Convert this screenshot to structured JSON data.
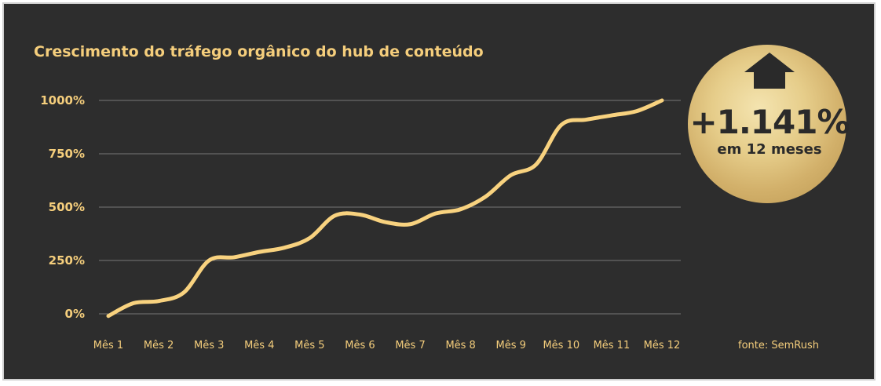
{
  "chart_data": {
    "type": "line",
    "title": "Crescimento do tráfego orgânico do hub de conteúdo",
    "categories": [
      "Mês 1",
      "Mês 2",
      "Mês 3",
      "Mês 4",
      "Mês 5",
      "Mês 6",
      "Mês 7",
      "Mês 8",
      "Mês 9",
      "Mês 10",
      "Mês 11",
      "Mês 12"
    ],
    "series": [
      {
        "x": [
          1,
          1.5,
          2,
          2.5,
          3,
          3.5,
          4,
          4.5,
          5,
          5.5,
          6,
          6.5,
          7,
          7.5,
          8,
          8.5,
          9,
          9.5,
          10,
          10.5,
          11,
          11.5,
          12
        ],
        "values": [
          -10,
          50,
          60,
          100,
          250,
          265,
          290,
          310,
          355,
          460,
          465,
          430,
          420,
          470,
          490,
          550,
          650,
          700,
          885,
          910,
          930,
          950,
          1000
        ]
      }
    ],
    "ylim": [
      0,
      1000
    ],
    "yticks": [
      0,
      250,
      500,
      750,
      1000
    ],
    "ytick_labels": [
      "0%",
      "250%",
      "500%",
      "750%",
      "1000%"
    ],
    "xlabel": "",
    "ylabel": "",
    "grid": true,
    "line_color": "#f8d27f"
  },
  "badge": {
    "value": "+1.141%",
    "subtitle": "em 12 meses",
    "icon": "arrow-up-icon",
    "color": "#e8cf8a"
  },
  "source": "fonte: SemRush",
  "colors": {
    "background": "#2d2d2d",
    "accent": "#f5ce7c",
    "grid": "#777777"
  }
}
